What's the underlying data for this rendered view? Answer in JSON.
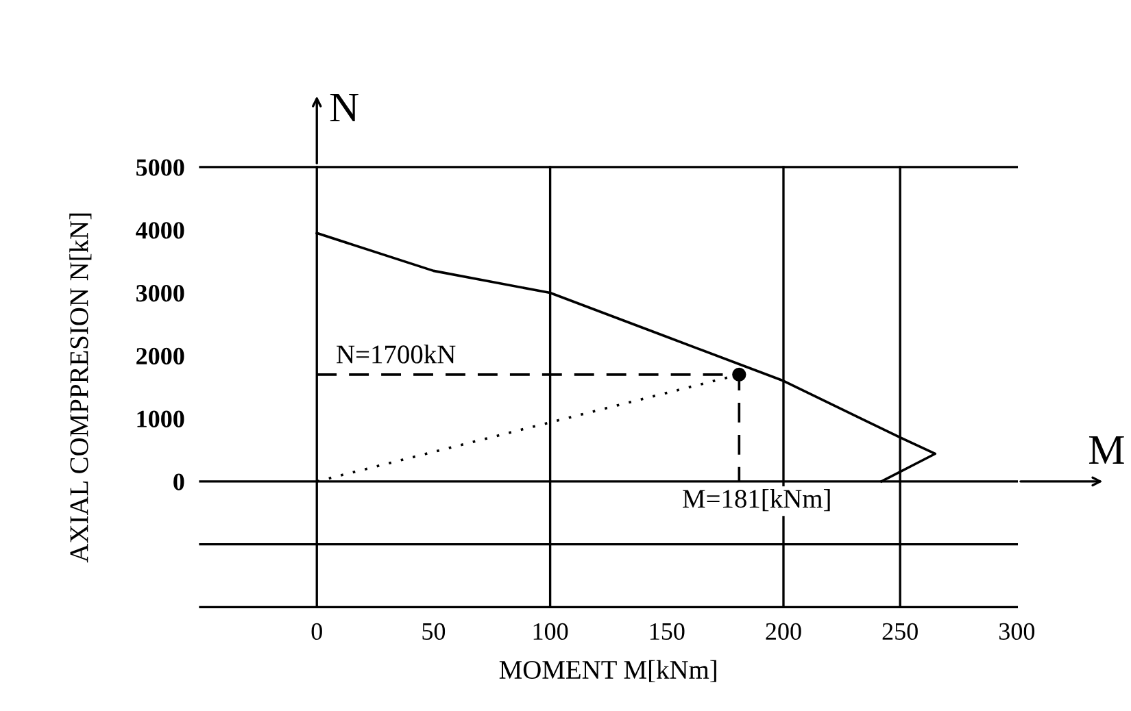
{
  "chart_data": {
    "type": "line",
    "xlabel": "MOMENT M[kNm]",
    "ylabel": "AXIAL COMPPRESION N[kN]",
    "xlim": [
      -50,
      300
    ],
    "ylim": [
      -2000,
      5000
    ],
    "xticks": [
      0,
      50,
      100,
      150,
      200,
      250,
      300
    ],
    "yticks": [
      0,
      1000,
      2000,
      3000,
      4000,
      5000
    ],
    "grid": false,
    "series": [
      {
        "color": "#000000",
        "line_style": "solid",
        "marker": "none",
        "x": [
          0,
          50,
          100,
          150,
          200,
          250,
          265,
          242
        ],
        "values": [
          3950,
          3350,
          3000,
          2300,
          1600,
          700,
          440,
          0
        ]
      },
      {
        "color": "#000000",
        "line_style": "dashed",
        "marker": "none",
        "x": [
          0,
          181,
          181
        ],
        "values": [
          1700,
          1700,
          0
        ]
      },
      {
        "color": "#000000",
        "line_style": "dotted",
        "marker": "none",
        "x": [
          0,
          181
        ],
        "values": [
          0,
          1700
        ]
      },
      {
        "type": "scatter",
        "color": "#000000",
        "marker": "circle",
        "x": [
          181
        ],
        "values": [
          1700
        ]
      }
    ],
    "ref_lines": [
      {
        "axis": "x",
        "value": 0,
        "color": "#000000"
      },
      {
        "axis": "x",
        "value": 100,
        "color": "#000000"
      },
      {
        "axis": "x",
        "value": 200,
        "color": "#000000"
      },
      {
        "axis": "x",
        "value": 250,
        "color": "#000000"
      },
      {
        "axis": "y",
        "value": 0,
        "color": "#000000"
      },
      {
        "axis": "y",
        "value": -1000,
        "color": "#000000"
      }
    ],
    "annotations": [
      "N",
      "M",
      {
        "text": "N=1700kN",
        "x": 0,
        "y": 1700
      },
      {
        "text": "M=181[kNm]",
        "x": 181,
        "y": 0
      }
    ]
  }
}
